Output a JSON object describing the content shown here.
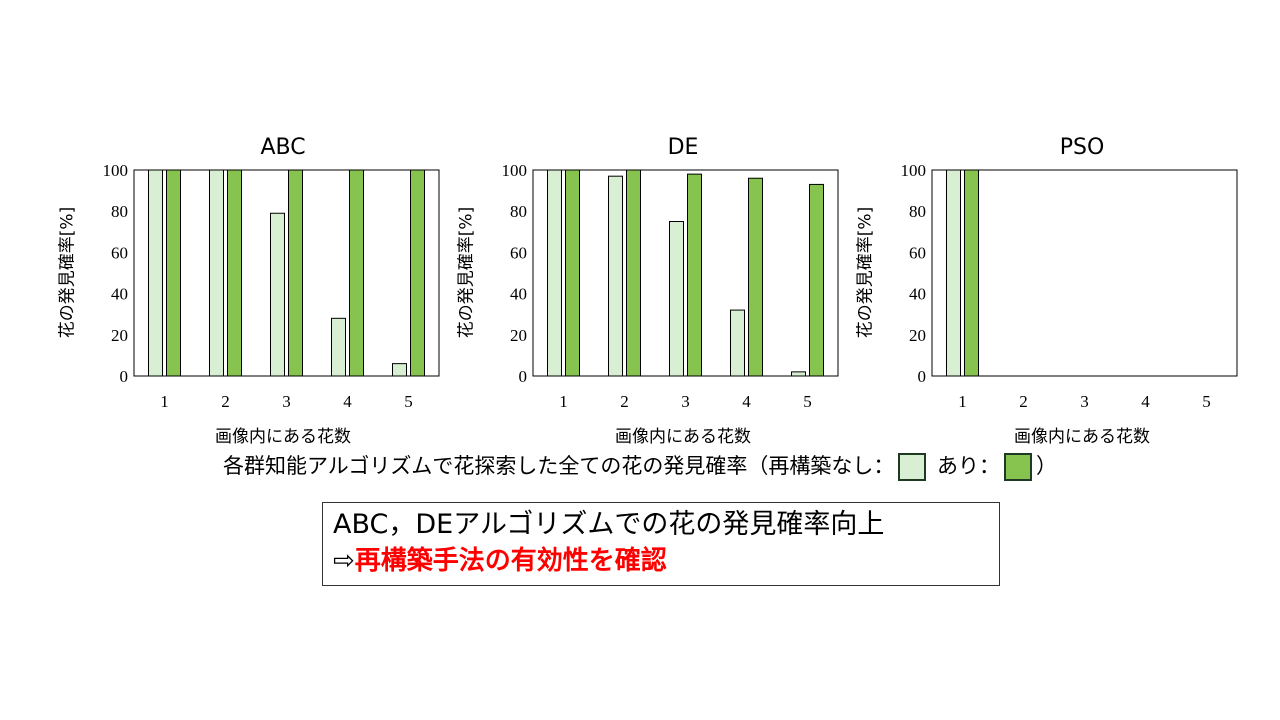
{
  "colors": {
    "no_rebuild": "#d9efd3",
    "rebuild": "#86c44f",
    "emphasis": "#ff0000"
  },
  "chart_data": [
    {
      "type": "bar",
      "title": "ABC",
      "xlabel": "画像内にある花数",
      "ylabel": "花の発見確率[%]",
      "categories": [
        "1",
        "2",
        "3",
        "4",
        "5"
      ],
      "ylim": [
        0,
        100
      ],
      "yticks": [
        "0",
        "20",
        "40",
        "60",
        "80",
        "100"
      ],
      "series": [
        {
          "name": "再構築なし",
          "values": [
            100,
            100,
            79,
            28,
            6
          ]
        },
        {
          "name": "あり",
          "values": [
            100,
            100,
            100,
            100,
            100
          ]
        }
      ]
    },
    {
      "type": "bar",
      "title": "DE",
      "xlabel": "画像内にある花数",
      "ylabel": "花の発見確率[%]",
      "categories": [
        "1",
        "2",
        "3",
        "4",
        "5"
      ],
      "ylim": [
        0,
        100
      ],
      "yticks": [
        "0",
        "20",
        "40",
        "60",
        "80",
        "100"
      ],
      "series": [
        {
          "name": "再構築なし",
          "values": [
            100,
            97,
            75,
            32,
            2
          ]
        },
        {
          "name": "あり",
          "values": [
            100,
            100,
            98,
            96,
            93
          ]
        }
      ]
    },
    {
      "type": "bar",
      "title": "PSO",
      "xlabel": "画像内にある花数",
      "ylabel": "花の発見確率[%]",
      "categories": [
        "1",
        "2",
        "3",
        "4",
        "5"
      ],
      "ylim": [
        0,
        100
      ],
      "yticks": [
        "0",
        "20",
        "40",
        "60",
        "80",
        "100"
      ],
      "series": [
        {
          "name": "再構築なし",
          "values": [
            100,
            0,
            0,
            0,
            0
          ]
        },
        {
          "name": "あり",
          "values": [
            100,
            0,
            0,
            0,
            0
          ]
        }
      ]
    }
  ],
  "caption": {
    "text": "各群知能アルゴリズムで花探索した全ての花の発見確率（再構築なし：",
    "between": "あり：",
    "end": "）"
  },
  "conclusion": {
    "line1": "ABC，DEアルゴリズムでの花の発見確率向上",
    "arrow": "⇨",
    "line2": "再構築手法の有効性を確認"
  }
}
